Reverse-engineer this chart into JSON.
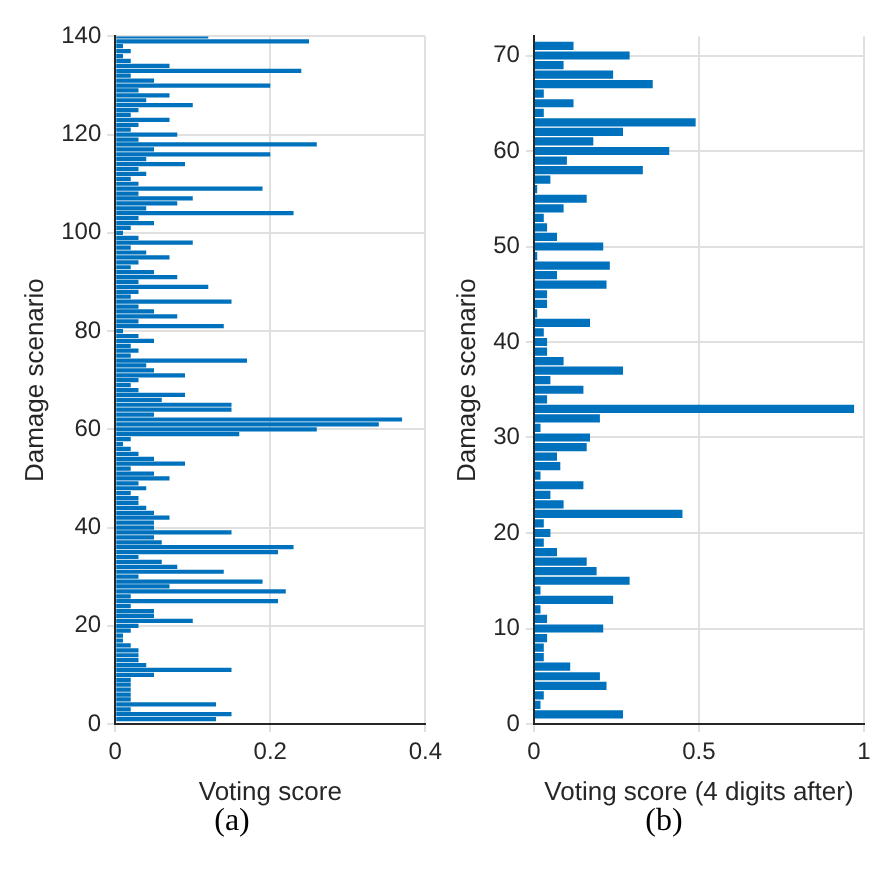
{
  "chart_data": [
    {
      "type": "bar",
      "orientation": "horizontal",
      "xlabel": "Voting score",
      "ylabel": "Damage scenario",
      "annotations": [
        "(a)"
      ],
      "color": "#0072bd",
      "grid": true,
      "x": [
        1,
        2,
        3,
        4,
        5,
        6,
        7,
        8,
        9,
        10,
        11,
        12,
        13,
        14,
        15,
        16,
        17,
        18,
        19,
        20,
        21,
        22,
        23,
        24,
        25,
        26,
        27,
        28,
        29,
        30,
        31,
        32,
        33,
        34,
        35,
        36,
        37,
        38,
        39,
        40,
        41,
        42,
        43,
        44,
        45,
        46,
        47,
        48,
        49,
        50,
        51,
        52,
        53,
        54,
        55,
        56,
        57,
        58,
        59,
        60,
        61,
        62,
        63,
        64,
        65,
        66,
        67,
        68,
        69,
        70,
        71,
        72,
        73,
        74,
        75,
        76,
        77,
        78,
        79,
        80,
        81,
        82,
        83,
        84,
        85,
        86,
        87,
        88,
        89,
        90,
        91,
        92,
        93,
        94,
        95,
        96,
        97,
        98,
        99,
        100,
        101,
        102,
        103,
        104,
        105,
        106,
        107,
        108,
        109,
        110,
        111,
        112,
        113,
        114,
        115,
        116,
        117,
        118,
        119,
        120,
        121,
        122,
        123,
        124,
        125,
        126,
        127,
        128,
        129,
        130,
        131,
        132,
        133,
        134,
        135,
        136,
        137,
        138,
        139,
        140
      ],
      "values": [
        0.13,
        0.15,
        0.02,
        0.13,
        0.02,
        0.02,
        0.02,
        0.02,
        0.02,
        0.05,
        0.15,
        0.04,
        0.03,
        0.03,
        0.03,
        0.02,
        0.01,
        0.01,
        0.02,
        0.03,
        0.1,
        0.05,
        0.05,
        0.02,
        0.21,
        0.02,
        0.22,
        0.07,
        0.19,
        0.03,
        0.14,
        0.08,
        0.06,
        0.03,
        0.21,
        0.23,
        0.06,
        0.05,
        0.15,
        0.05,
        0.05,
        0.07,
        0.05,
        0.04,
        0.03,
        0.03,
        0.02,
        0.04,
        0.03,
        0.07,
        0.05,
        0.02,
        0.09,
        0.05,
        0.03,
        0.02,
        0.01,
        0.02,
        0.16,
        0.26,
        0.34,
        0.37,
        0.05,
        0.15,
        0.15,
        0.06,
        0.09,
        0.03,
        0.02,
        0.03,
        0.09,
        0.05,
        0.04,
        0.17,
        0.02,
        0.03,
        0.02,
        0.05,
        0.03,
        0.01,
        0.14,
        0.03,
        0.08,
        0.05,
        0.03,
        0.15,
        0.02,
        0.03,
        0.12,
        0.03,
        0.08,
        0.05,
        0.02,
        0.03,
        0.07,
        0.04,
        0.02,
        0.1,
        0.03,
        0.01,
        0.02,
        0.05,
        0.03,
        0.23,
        0.04,
        0.08,
        0.1,
        0.03,
        0.19,
        0.03,
        0.02,
        0.04,
        0.03,
        0.09,
        0.04,
        0.2,
        0.05,
        0.26,
        0.03,
        0.08,
        0.02,
        0.03,
        0.07,
        0.02,
        0.03,
        0.1,
        0.04,
        0.07,
        0.03,
        0.2,
        0.05,
        0.02,
        0.24,
        0.07,
        0.02,
        0.01,
        0.02,
        0.01,
        0.25,
        0.12
      ],
      "xlim": [
        0,
        0.4
      ],
      "xticks": [
        0,
        0.2,
        0.4
      ],
      "ylim": [
        0,
        140
      ],
      "yticks": [
        0,
        20,
        40,
        60,
        80,
        100,
        120,
        140
      ]
    },
    {
      "type": "bar",
      "orientation": "horizontal",
      "xlabel": "Voting score (4 digits after)",
      "ylabel": "Damage scenario",
      "annotations": [
        "(b)"
      ],
      "color": "#0072bd",
      "grid": true,
      "x": [
        1,
        2,
        3,
        4,
        5,
        6,
        7,
        8,
        9,
        10,
        11,
        12,
        13,
        14,
        15,
        16,
        17,
        18,
        19,
        20,
        21,
        22,
        23,
        24,
        25,
        26,
        27,
        28,
        29,
        30,
        31,
        32,
        33,
        34,
        35,
        36,
        37,
        38,
        39,
        40,
        41,
        42,
        43,
        44,
        45,
        46,
        47,
        48,
        49,
        50,
        51,
        52,
        53,
        54,
        55,
        56,
        57,
        58,
        59,
        60,
        61,
        62,
        63,
        64,
        65,
        66,
        67,
        68,
        69,
        70,
        71
      ],
      "values": [
        0.27,
        0.02,
        0.03,
        0.22,
        0.2,
        0.11,
        0.03,
        0.03,
        0.04,
        0.21,
        0.04,
        0.02,
        0.24,
        0.02,
        0.29,
        0.19,
        0.16,
        0.07,
        0.03,
        0.05,
        0.03,
        0.45,
        0.09,
        0.05,
        0.15,
        0.02,
        0.08,
        0.07,
        0.16,
        0.17,
        0.02,
        0.2,
        0.97,
        0.04,
        0.15,
        0.05,
        0.27,
        0.09,
        0.04,
        0.04,
        0.03,
        0.17,
        0.01,
        0.04,
        0.04,
        0.22,
        0.07,
        0.23,
        0.01,
        0.21,
        0.07,
        0.04,
        0.03,
        0.09,
        0.16,
        0.01,
        0.05,
        0.33,
        0.1,
        0.41,
        0.18,
        0.27,
        0.49,
        0.03,
        0.12,
        0.03,
        0.36,
        0.24,
        0.09,
        0.29,
        0.12
      ],
      "xlim": [
        0,
        1
      ],
      "xticks": [
        0,
        0.5,
        1
      ],
      "ylim": [
        0,
        72
      ],
      "yticks": [
        0,
        10,
        20,
        30,
        40,
        50,
        60,
        70
      ]
    }
  ]
}
